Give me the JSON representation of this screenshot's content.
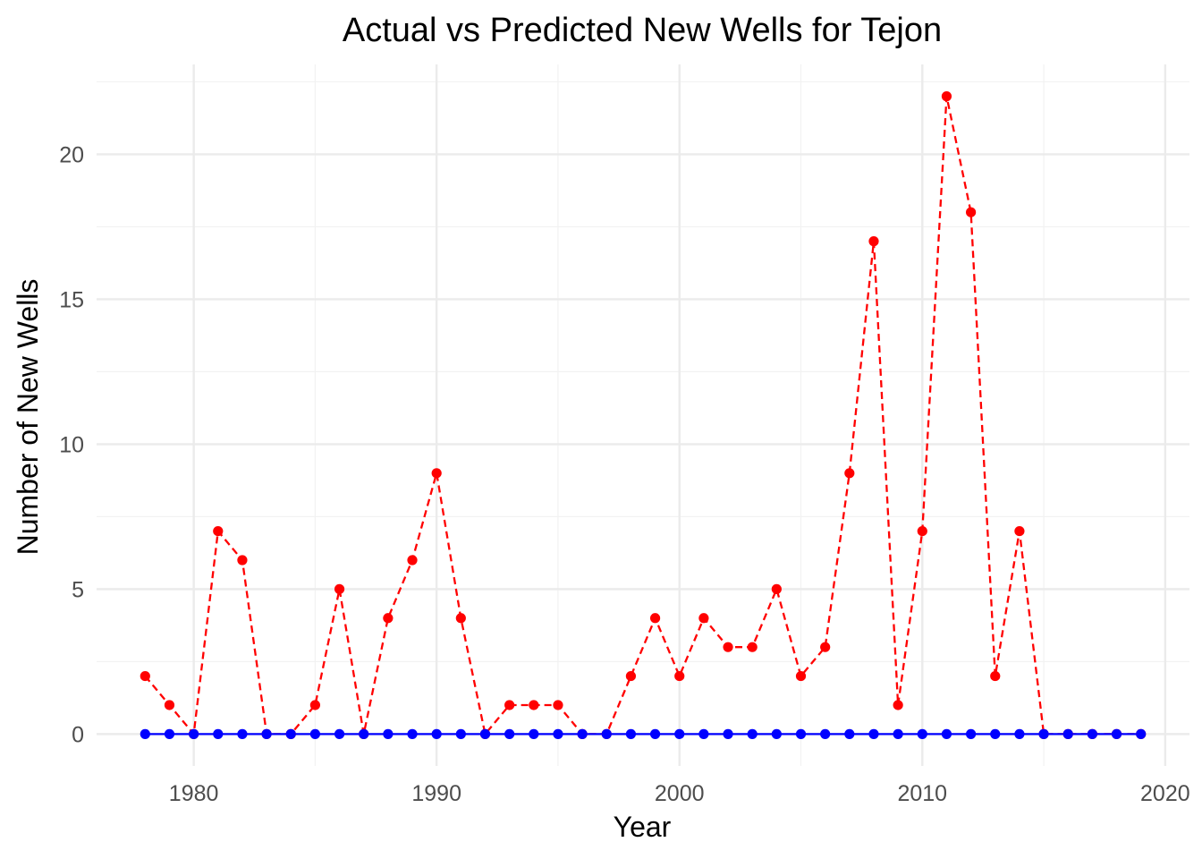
{
  "chart_data": {
    "type": "line",
    "title": "Actual vs Predicted New Wells for Tejon",
    "xlabel": "Year",
    "ylabel": "Number of New Wells",
    "xlim": [
      1976,
      2021
    ],
    "ylim": [
      -1.1,
      23.1
    ],
    "x_ticks": [
      1980,
      1990,
      2000,
      2010,
      2020
    ],
    "y_ticks": [
      0,
      5,
      10,
      15,
      20
    ],
    "x_tick_labels": [
      "1980",
      "1990",
      "2000",
      "2010",
      "2020"
    ],
    "y_tick_labels": [
      "0",
      "5",
      "10",
      "15",
      "20"
    ],
    "grid": true,
    "legend": "none",
    "x": [
      1978,
      1979,
      1980,
      1981,
      1982,
      1983,
      1984,
      1985,
      1986,
      1987,
      1988,
      1989,
      1990,
      1991,
      1992,
      1993,
      1994,
      1995,
      1996,
      1997,
      1998,
      1999,
      2000,
      2001,
      2002,
      2003,
      2004,
      2005,
      2006,
      2007,
      2008,
      2009,
      2010,
      2011,
      2012,
      2013,
      2014,
      2015,
      2016,
      2017,
      2018,
      2019
    ],
    "series": [
      {
        "color": "#ff0000",
        "line_style": "dashed",
        "values": [
          2,
          1,
          0,
          7,
          6,
          0,
          0,
          1,
          5,
          0,
          4,
          6,
          9,
          4,
          0,
          1,
          1,
          1,
          0,
          0,
          2,
          4,
          2,
          4,
          3,
          3,
          5,
          2,
          3,
          9,
          17,
          1,
          7,
          22,
          18,
          2,
          7,
          0,
          0,
          0,
          0,
          0
        ]
      },
      {
        "color": "#0000ff",
        "line_style": "solid",
        "values": [
          0,
          0,
          0,
          0,
          0,
          0,
          0,
          0,
          0,
          0,
          0,
          0,
          0,
          0,
          0,
          0,
          0,
          0,
          0,
          0,
          0,
          0,
          0,
          0,
          0,
          0,
          0,
          0,
          0,
          0,
          0,
          0,
          0,
          0,
          0,
          0,
          0,
          0,
          0,
          0,
          0,
          0
        ]
      }
    ]
  }
}
